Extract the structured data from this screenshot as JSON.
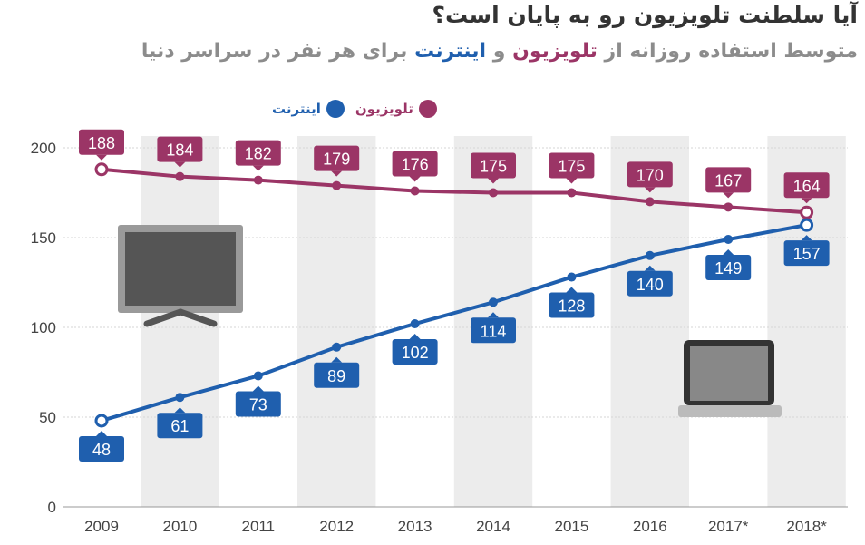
{
  "chart_data": {
    "type": "line",
    "title": "آیا سلطنت تلویزیون رو به پایان است؟",
    "subtitle_parts": [
      "متوسط استفاده روزانه از ",
      "تلویزیون",
      " و ",
      "اینترنت",
      " برای هر نفر در سراسر دنیا"
    ],
    "categories": [
      "2009",
      "2010",
      "2011",
      "2012",
      "2013",
      "2014",
      "2015",
      "2016",
      "2017*",
      "2018*"
    ],
    "series": [
      {
        "name": "تلویزیون",
        "color": "#9b3566",
        "values": [
          188,
          184,
          182,
          179,
          176,
          175,
          175,
          170,
          167,
          164
        ]
      },
      {
        "name": "اینترنت",
        "color": "#1f5fae",
        "values": [
          48,
          61,
          73,
          89,
          102,
          114,
          128,
          140,
          149,
          157
        ]
      }
    ],
    "ylim": [
      0,
      200
    ],
    "yticks": [
      0,
      50,
      100,
      150,
      200
    ],
    "grid": true,
    "legend": "top-left",
    "icons": [
      "tv-icon",
      "laptop-icon"
    ]
  }
}
